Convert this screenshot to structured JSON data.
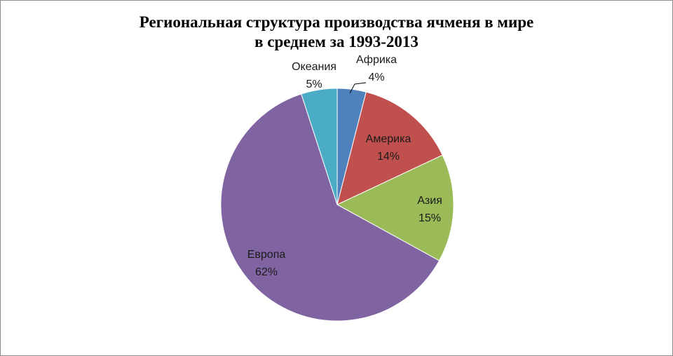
{
  "chart_data": {
    "type": "pie",
    "title_lines": [
      "Региональная структура производства ячменя в мире",
      "в среднем за 1993-2013"
    ],
    "categories": [
      "Африка",
      "Америка",
      "Азия",
      "Европа",
      "Океания"
    ],
    "values": [
      4,
      14,
      15,
      62,
      5
    ],
    "value_labels": [
      "4%",
      "14%",
      "15%",
      "62%",
      "5%"
    ],
    "colors": [
      "#4f81bd",
      "#c0504d",
      "#9bbb59",
      "#8064a2",
      "#4bacc6"
    ],
    "start_angle": "12 o'clock",
    "direction": "clockwise",
    "legend": "none"
  }
}
